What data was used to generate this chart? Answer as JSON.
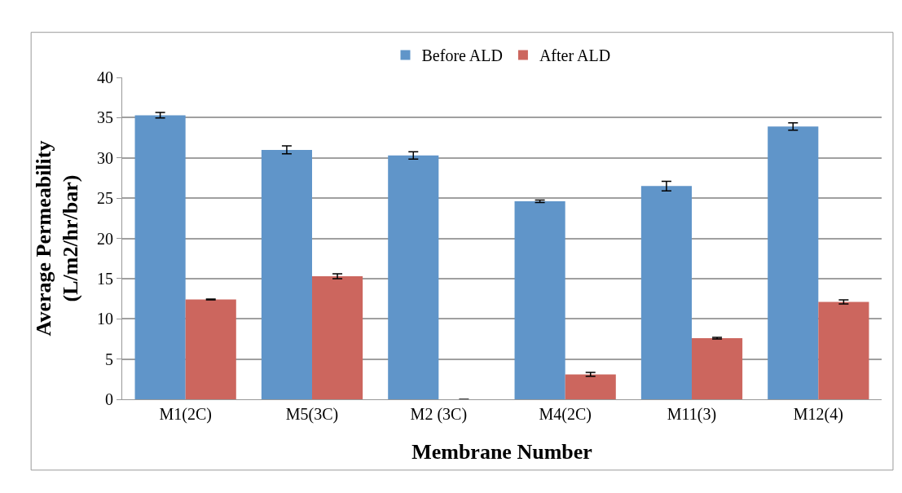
{
  "chart_data": {
    "type": "bar",
    "xlabel": "Membrane Number",
    "ylabel": "Average Permeability\n(L/m2/hr/bar)",
    "categories": [
      "M1(2C)",
      "M5(3C)",
      "M2 (3C)",
      "M4(2C)",
      "M11(3)",
      "M12(4)"
    ],
    "series": [
      {
        "name": "Before ALD",
        "color": "#6095c9",
        "values": [
          35.3,
          31.0,
          30.3,
          24.6,
          26.5,
          33.9
        ],
        "errors": [
          0.35,
          0.5,
          0.45,
          0.15,
          0.6,
          0.45
        ]
      },
      {
        "name": "After ALD",
        "color": "#cc665e",
        "values": [
          12.4,
          15.3,
          0,
          3.1,
          7.6,
          12.1
        ],
        "errors": [
          0.05,
          0.3,
          null,
          0.25,
          0.1,
          0.25
        ]
      }
    ],
    "ylim": [
      0,
      40
    ],
    "yticks": [
      0,
      5,
      10,
      15,
      20,
      25,
      30,
      35,
      40
    ],
    "grid": "y",
    "legend": "top"
  }
}
